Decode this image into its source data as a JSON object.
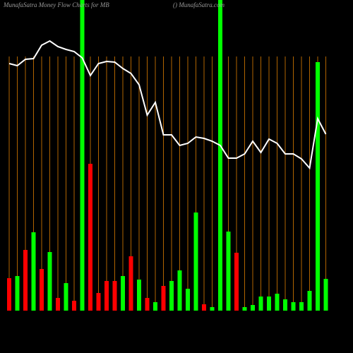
{
  "chart_data": {
    "type": "bar-line",
    "title": "MunafaSatra  Money Flow  Charts for MB",
    "subtitle": "() MunafaSatra.com",
    "ylim": [
      0,
      440
    ],
    "grid": true,
    "grid_color": "#b06400",
    "bars": {
      "values": [
        46,
        49,
        86,
        111,
        59,
        83,
        18,
        39,
        14,
        440,
        208,
        25,
        42,
        42,
        49,
        77,
        44,
        18,
        12,
        35,
        42,
        57,
        31,
        139,
        9,
        5,
        440,
        112,
        82,
        5,
        8,
        20,
        20,
        24,
        16,
        12,
        12,
        28,
        352,
        45
      ],
      "colors": [
        "#ff0000",
        "#00ff00",
        "#ff0000",
        "#00ff00",
        "#ff0000",
        "#00ff00",
        "#ff0000",
        "#00ff00",
        "#ff0000",
        "#00ff00",
        "#ff0000",
        "#ff0000",
        "#ff0000",
        "#ff0000",
        "#00ff00",
        "#ff0000",
        "#00ff00",
        "#ff0000",
        "#00ff00",
        "#ff0000",
        "#00ff00",
        "#00ff00",
        "#00ff00",
        "#00ff00",
        "#ff0000",
        "#00ff00",
        "#00ff00",
        "#00ff00",
        "#ff0000",
        "#00ff00",
        "#00ff00",
        "#00ff00",
        "#00ff00",
        "#00ff00",
        "#00ff00",
        "#00ff00",
        "#00ff00",
        "#00ff00",
        "#00ff00",
        "#00ff00"
      ]
    },
    "line": {
      "color": "#ffffff",
      "values": [
        350,
        347,
        356,
        357,
        376,
        382,
        374,
        370,
        367,
        358,
        333,
        350,
        353,
        352,
        343,
        336,
        320,
        277,
        295,
        249,
        249,
        234,
        237,
        246,
        244,
        240,
        234,
        216,
        216,
        222,
        240,
        224,
        243,
        237,
        222,
        222,
        215,
        202,
        272,
        250
      ]
    }
  }
}
